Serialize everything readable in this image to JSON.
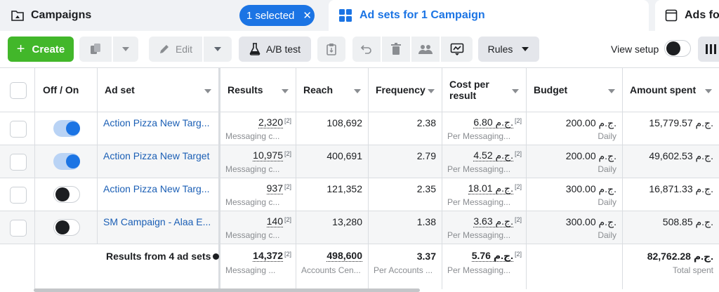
{
  "tabs": {
    "campaigns": {
      "label": "Campaigns",
      "selected_label": "1 selected",
      "clear_icon": "close-icon"
    },
    "adsets": {
      "label": "Ad sets for 1 Campaign"
    },
    "ads": {
      "label": "Ads fo"
    }
  },
  "toolbar": {
    "create_label": "Create",
    "edit_label": "Edit",
    "ab_test_label": "A/B test",
    "rules_label": "Rules",
    "view_setup_label": "View setup"
  },
  "table": {
    "headers": {
      "onoff": "Off / On",
      "adset": "Ad set",
      "results": "Results",
      "reach": "Reach",
      "frequency": "Frequency",
      "cost_per_result": "Cost per result",
      "budget": "Budget",
      "amount_spent": "Amount spent"
    },
    "rows": [
      {
        "on": true,
        "name": "Action Pizza New Targ...",
        "results": "2,320",
        "results_ref": "[2]",
        "results_sub": "Messaging c...",
        "reach": "108,692",
        "frequency": "2.38",
        "cpr": "6.80 ج.م.",
        "cpr_ref": "[2]",
        "cpr_sub": "Per Messaging...",
        "budget": "200.00 ج.م.",
        "budget_sub": "Daily",
        "spent": "15,779.57 ج.م."
      },
      {
        "on": true,
        "name": "Action Pizza New Target",
        "results": "10,975",
        "results_ref": "[2]",
        "results_sub": "Messaging c...",
        "reach": "400,691",
        "frequency": "2.79",
        "cpr": "4.52 ج.م.",
        "cpr_ref": "[2]",
        "cpr_sub": "Per Messaging...",
        "budget": "200.00 ج.م.",
        "budget_sub": "Daily",
        "spent": "49,602.53 ج.م."
      },
      {
        "on": false,
        "name": "Action Pizza New Targ...",
        "results": "937",
        "results_ref": "[2]",
        "results_sub": "Messaging c...",
        "reach": "121,352",
        "frequency": "2.35",
        "cpr": "18.01 ج.م.",
        "cpr_ref": "[2]",
        "cpr_sub": "Per Messaging...",
        "budget": "300.00 ج.م.",
        "budget_sub": "Daily",
        "spent": "16,871.33 ج.م."
      },
      {
        "on": false,
        "name": "SM Campaign - Alaa E...",
        "results": "140",
        "results_ref": "[2]",
        "results_sub": "Messaging c...",
        "reach": "13,280",
        "frequency": "1.38",
        "cpr": "3.63 ج.م.",
        "cpr_ref": "[2]",
        "cpr_sub": "Per Messaging...",
        "budget": "300.00 ج.م.",
        "budget_sub": "Daily",
        "spent": "508.85 ج.م."
      }
    ],
    "footer": {
      "label": "Results from 4 ad sets",
      "results": "14,372",
      "results_ref": "[2]",
      "results_sub": "Messaging ...",
      "reach": "498,600",
      "reach_sub": "Accounts Cen...",
      "frequency": "3.37",
      "frequency_sub": "Per Accounts ...",
      "cpr": "5.76 ج.م.",
      "cpr_ref": "[2]",
      "cpr_sub": "Per Messaging...",
      "spent": "82,762.28 ج.م.",
      "spent_sub": "Total spent"
    }
  },
  "colors": {
    "accent": "#1b74e4",
    "create": "#42b72a",
    "link": "#1b5fb5"
  }
}
